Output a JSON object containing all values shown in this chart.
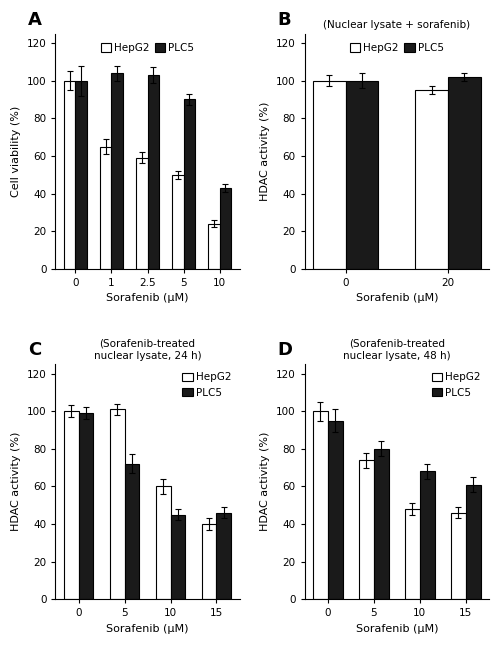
{
  "panel_A": {
    "title": "A",
    "subtitle": null,
    "xlabel": "Sorafenib (μM)",
    "ylabel": "Cell viability (%)",
    "x_labels": [
      "0",
      "1",
      "2.5",
      "5",
      "10"
    ],
    "hepg2_values": [
      100,
      65,
      59,
      50,
      24
    ],
    "plc5_values": [
      100,
      104,
      103,
      90,
      43
    ],
    "hepg2_errors": [
      5,
      4,
      3,
      2,
      2
    ],
    "plc5_errors": [
      8,
      4,
      4,
      3,
      2
    ],
    "ylim": [
      0,
      125
    ],
    "yticks": [
      0,
      20,
      40,
      60,
      80,
      100,
      120
    ],
    "legend_ncol": 2,
    "legend_loc": "upper_center_inside"
  },
  "panel_B": {
    "title": "B",
    "subtitle": "(Nuclear lysate + sorafenib)",
    "xlabel": "Sorafenib (μM)",
    "ylabel": "HDAC activity (%)",
    "x_labels": [
      "0",
      "20"
    ],
    "hepg2_values": [
      100,
      95
    ],
    "plc5_values": [
      100,
      102
    ],
    "hepg2_errors": [
      3,
      2
    ],
    "plc5_errors": [
      4,
      2
    ],
    "ylim": [
      0,
      125
    ],
    "yticks": [
      0,
      20,
      40,
      60,
      80,
      100,
      120
    ],
    "legend_ncol": 2,
    "legend_loc": "upper_center_inside"
  },
  "panel_C": {
    "title": "C",
    "subtitle": "(Sorafenib-treated\nnuclear lysate, 24 h)",
    "xlabel": "Sorafenib (μM)",
    "ylabel": "HDAC activity (%)",
    "x_labels": [
      "0",
      "5",
      "10",
      "15"
    ],
    "hepg2_values": [
      100,
      101,
      60,
      40
    ],
    "plc5_values": [
      99,
      72,
      45,
      46
    ],
    "hepg2_errors": [
      3,
      3,
      4,
      3
    ],
    "plc5_errors": [
      3,
      5,
      3,
      3
    ],
    "ylim": [
      0,
      125
    ],
    "yticks": [
      0,
      20,
      40,
      60,
      80,
      100,
      120
    ],
    "legend_ncol": 1,
    "legend_loc": "upper_right_inside"
  },
  "panel_D": {
    "title": "D",
    "subtitle": "(Sorafenib-treated\nnuclear lysate, 48 h)",
    "xlabel": "Sorafenib (μM)",
    "ylabel": "HDAC activity (%)",
    "x_labels": [
      "0",
      "5",
      "10",
      "15"
    ],
    "hepg2_values": [
      100,
      74,
      48,
      46
    ],
    "plc5_values": [
      95,
      80,
      68,
      61
    ],
    "hepg2_errors": [
      5,
      4,
      3,
      3
    ],
    "plc5_errors": [
      6,
      4,
      4,
      4
    ],
    "ylim": [
      0,
      125
    ],
    "yticks": [
      0,
      20,
      40,
      60,
      80,
      100,
      120
    ],
    "legend_ncol": 1,
    "legend_loc": "upper_right_inside"
  },
  "bar_width": 0.32,
  "hepg2_color": "white",
  "plc5_color": "#1a1a1a",
  "edge_color": "black",
  "font_size": 7.5,
  "label_fontsize": 8,
  "tick_fontsize": 7.5,
  "panel_label_fontsize": 13
}
